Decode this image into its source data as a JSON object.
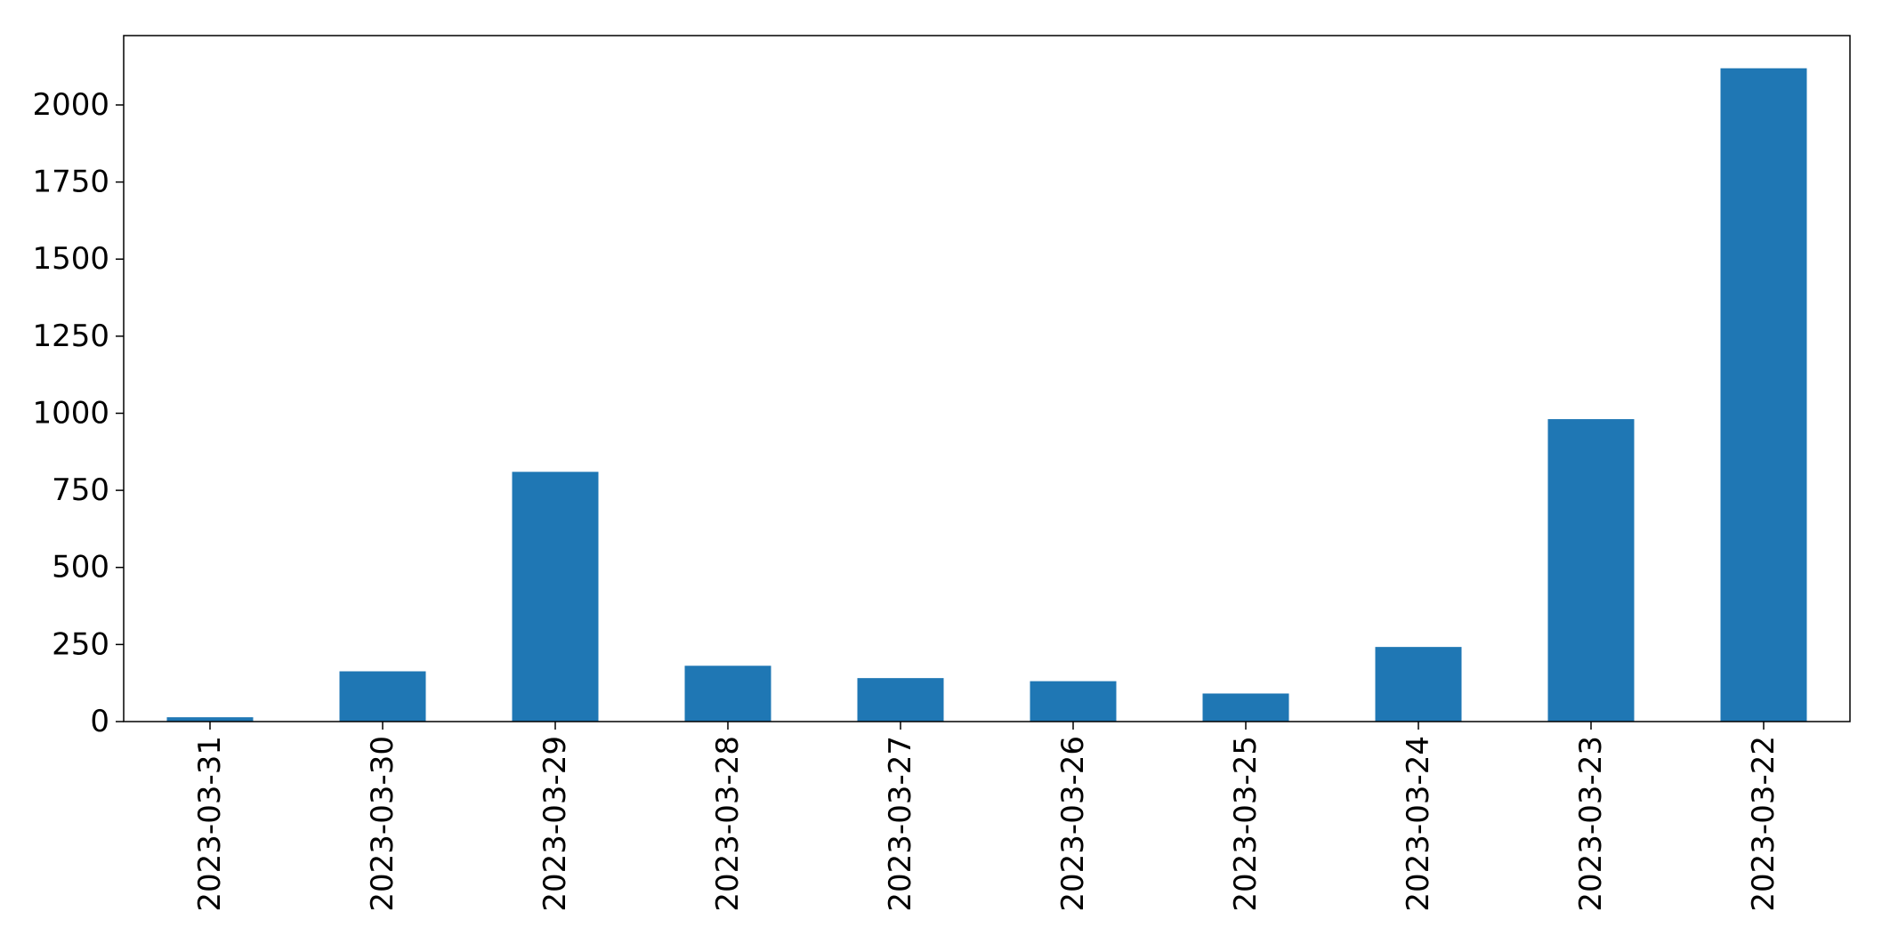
{
  "chart_data": {
    "type": "bar",
    "title": "",
    "xlabel": "",
    "ylabel": "",
    "categories": [
      "2023-03-31",
      "2023-03-30",
      "2023-03-29",
      "2023-03-28",
      "2023-03-27",
      "2023-03-26",
      "2023-03-25",
      "2023-03-24",
      "2023-03-23",
      "2023-03-22"
    ],
    "values": [
      14,
      163,
      810,
      181,
      141,
      131,
      91,
      242,
      981,
      2119
    ],
    "ylim": [
      0,
      2225
    ],
    "yticks": [
      0,
      250,
      500,
      750,
      1000,
      1250,
      1500,
      1750,
      2000
    ],
    "ytick_labels": [
      "0",
      "250",
      "500",
      "750",
      "1000",
      "1250",
      "1500",
      "1750",
      "2000"
    ],
    "bar_color": "#1f77b4",
    "grid": false,
    "legend": "none"
  }
}
